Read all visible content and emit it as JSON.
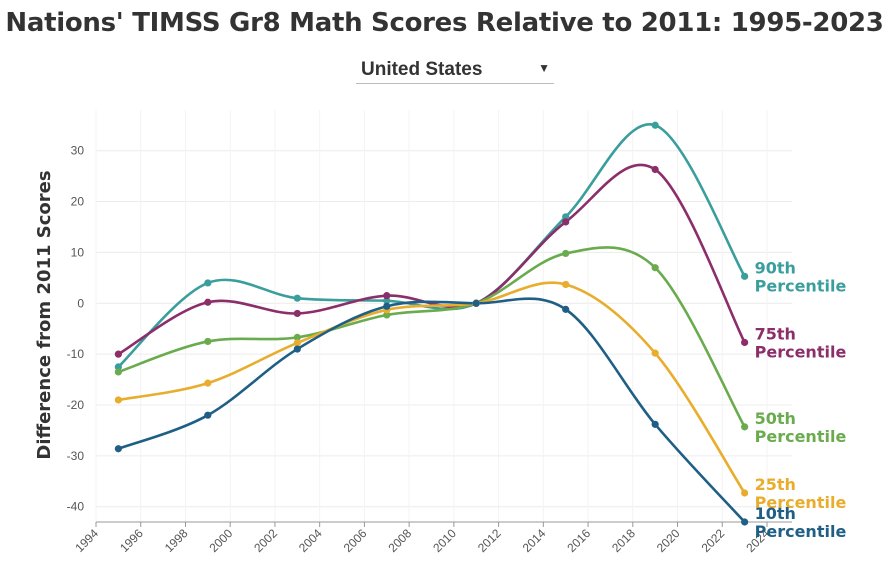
{
  "page": {
    "title": "Nations' TIMSS Gr8 Math Scores Relative to 2011: 1995-2023",
    "country_select": {
      "value": "United States",
      "icon": "chevron-down-icon"
    }
  },
  "chart_data": {
    "type": "line",
    "title": "Nations' TIMSS Gr8 Math Scores Relative to 2011: 1995-2023",
    "xlabel": "",
    "ylabel": "Difference from 2011 Scores",
    "xlim": [
      1994,
      2024
    ],
    "ylim": [
      -43,
      38
    ],
    "x_ticks": [
      1994,
      1996,
      1998,
      2000,
      2002,
      2004,
      2006,
      2008,
      2010,
      2012,
      2014,
      2016,
      2018,
      2020,
      2022,
      2024
    ],
    "y_ticks": [
      -40,
      -30,
      -20,
      -10,
      0,
      10,
      20,
      30
    ],
    "grid": true,
    "legend": "direct labels at right end of lines",
    "x": [
      1995,
      1999,
      2003,
      2007,
      2011,
      2015,
      2019,
      2023
    ],
    "series": [
      {
        "name": "90th Percentile",
        "color": "#3a9e9d",
        "values": [
          -12.5,
          4,
          1,
          0.5,
          0,
          17,
          35,
          5.3
        ]
      },
      {
        "name": "75th Percentile",
        "color": "#8b2e6a",
        "values": [
          -10,
          0.2,
          -2,
          1.5,
          0,
          16,
          26.3,
          -7.7
        ]
      },
      {
        "name": "50th Percentile",
        "color": "#6aab4e",
        "values": [
          -13.5,
          -7.5,
          -6.7,
          -2.3,
          0,
          9.8,
          7,
          -24.3
        ]
      },
      {
        "name": "25th Percentile",
        "color": "#e9ad2d",
        "values": [
          -19,
          -15.7,
          -7.8,
          -1.3,
          0,
          3.7,
          -9.8,
          -37.3
        ]
      },
      {
        "name": "10th Percentile",
        "color": "#1f5f86",
        "values": [
          -28.6,
          -22,
          -9,
          -0.6,
          0,
          -1.2,
          -23.8,
          -43
        ]
      }
    ]
  }
}
